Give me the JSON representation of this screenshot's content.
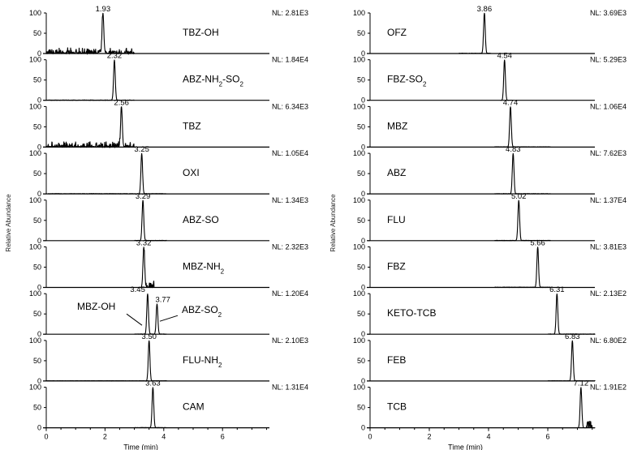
{
  "chart_data": [
    {
      "type": "line",
      "title": "",
      "xlabel": "Time (min)",
      "ylabel": "Relative Abundance",
      "xlim": [
        0,
        7.6
      ],
      "ylim": [
        0,
        100
      ],
      "x_ticks": [
        "0",
        "2",
        "4",
        "6"
      ],
      "y_ticks": [
        "0",
        "50",
        "100"
      ],
      "grid": false,
      "panels": [
        {
          "compound": "TBZ-OH",
          "compound_sub": [],
          "nl": "NL: 2.81E3",
          "peaks": [
            {
              "rt": 1.93,
              "label": "1.93"
            }
          ],
          "noise": "high",
          "range": [
            0,
            3.0
          ]
        },
        {
          "compound": "ABZ-NH2-SO2",
          "compound_parts": [
            [
              "ABZ-NH",
              ""
            ],
            [
              "2",
              "sub"
            ],
            [
              "-SO",
              ""
            ],
            [
              "2",
              "sub"
            ]
          ],
          "nl": "NL: 1.84E4",
          "peaks": [
            {
              "rt": 2.32,
              "label": "2.32"
            }
          ],
          "noise": "low",
          "range": [
            0,
            3.0
          ]
        },
        {
          "compound": "TBZ",
          "nl": "NL: 6.34E3",
          "peaks": [
            {
              "rt": 2.56,
              "label": "2.56"
            }
          ],
          "noise": "high",
          "range": [
            0,
            3.0
          ]
        },
        {
          "compound": "OXI",
          "nl": "NL: 1.05E4",
          "peaks": [
            {
              "rt": 3.25,
              "label": "3.25"
            }
          ],
          "noise": "low",
          "range": [
            0,
            4.1
          ]
        },
        {
          "compound": "ABZ-SO",
          "nl": "NL: 1.34E3",
          "peaks": [
            {
              "rt": 3.29,
              "label": "3.29"
            }
          ],
          "noise": "low",
          "range": [
            3.0,
            4.1
          ]
        },
        {
          "compound": "MBZ-NH2",
          "compound_parts": [
            [
              "MBZ-NH",
              ""
            ],
            [
              "2",
              "sub"
            ]
          ],
          "nl": "NL: 2.32E3",
          "peaks": [
            {
              "rt": 3.32,
              "label": "3.32"
            }
          ],
          "noise": "medium",
          "range": [
            3.0,
            4.1
          ]
        },
        {
          "compound": "MBZ-OH / ABZ-SO2",
          "nl": "NL: 1.20E4",
          "peaks": [
            {
              "rt": 3.45,
              "label": "3.45",
              "height": 100
            },
            {
              "rt": 3.77,
              "label": "3.77",
              "height": 75
            }
          ],
          "annotations": [
            {
              "text": "MBZ-OH"
            },
            {
              "text_parts": [
                [
                  "ABZ-SO",
                  ""
                ],
                [
                  "2",
                  "sub"
                ]
              ]
            }
          ],
          "noise": "low",
          "range": [
            3.0,
            4.1
          ]
        },
        {
          "compound": "FLU-NH2",
          "compound_parts": [
            [
              "FLU-NH",
              ""
            ],
            [
              "2",
              "sub"
            ]
          ],
          "nl": "NL: 2.10E3",
          "peaks": [
            {
              "rt": 3.5,
              "label": "3.50"
            }
          ],
          "noise": "low",
          "range": [
            0,
            4.1
          ]
        },
        {
          "compound": "CAM",
          "nl": "NL: 1.31E4",
          "peaks": [
            {
              "rt": 3.63,
              "label": "3.63"
            }
          ],
          "noise": "low",
          "range": [
            3.0,
            4.1
          ]
        }
      ]
    },
    {
      "type": "line",
      "title": "",
      "xlabel": "Time (min)",
      "ylabel": "Relative Abundance",
      "xlim": [
        0,
        7.6
      ],
      "ylim": [
        0,
        100
      ],
      "x_ticks": [
        "0",
        "2",
        "4",
        "6"
      ],
      "y_ticks": [
        "0",
        "50",
        "100"
      ],
      "grid": false,
      "panels": [
        {
          "compound": "OFZ",
          "nl": "NL: 3.69E3",
          "peaks": [
            {
              "rt": 3.86,
              "label": "3.86"
            }
          ],
          "noise": "low",
          "range": [
            3.0,
            4.1
          ]
        },
        {
          "compound": "FBZ-SO2",
          "compound_parts": [
            [
              "FBZ-SO",
              ""
            ],
            [
              "2",
              "sub"
            ]
          ],
          "nl": "NL: 5.29E3",
          "peaks": [
            {
              "rt": 4.54,
              "label": "4.54"
            }
          ],
          "noise": "none",
          "range": [
            4.4,
            4.7
          ]
        },
        {
          "compound": "MBZ",
          "nl": "NL: 1.06E4",
          "peaks": [
            {
              "rt": 4.74,
              "label": "4.74"
            }
          ],
          "noise": "low",
          "range": [
            4.2,
            6.1
          ]
        },
        {
          "compound": "ABZ",
          "nl": "NL: 7.62E3",
          "peaks": [
            {
              "rt": 4.83,
              "label": "4.83"
            }
          ],
          "noise": "low",
          "range": [
            4.2,
            6.1
          ]
        },
        {
          "compound": "FLU",
          "nl": "NL: 1.37E4",
          "peaks": [
            {
              "rt": 5.02,
              "label": "5.02"
            }
          ],
          "noise": "low",
          "range": [
            4.2,
            6.1
          ]
        },
        {
          "compound": "FBZ",
          "nl": "NL: 3.81E3",
          "peaks": [
            {
              "rt": 5.66,
              "label": "5.66"
            }
          ],
          "noise": "low",
          "range": [
            4.2,
            6.1
          ]
        },
        {
          "compound": "KETO-TCB",
          "nl": "NL: 2.13E2",
          "peaks": [
            {
              "rt": 6.31,
              "label": "6.31"
            }
          ],
          "noise": "low",
          "range": [
            6.0,
            7.6
          ]
        },
        {
          "compound": "FEB",
          "nl": "NL: 6.80E2",
          "peaks": [
            {
              "rt": 6.83,
              "label": "6.83"
            }
          ],
          "noise": "low",
          "range": [
            6.0,
            7.6
          ]
        },
        {
          "compound": "TCB",
          "nl": "NL: 1.91E2",
          "peaks": [
            {
              "rt": 7.12,
              "label": "7.12"
            }
          ],
          "noise": "tail",
          "range": [
            6.0,
            7.6
          ]
        }
      ]
    }
  ]
}
